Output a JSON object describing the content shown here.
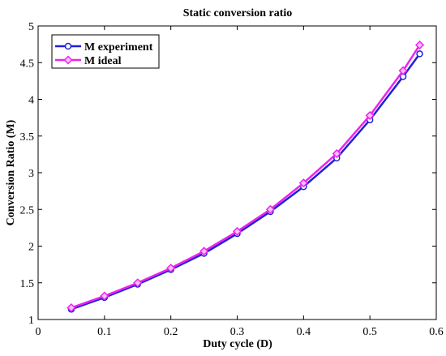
{
  "chart_data": {
    "type": "line",
    "title": "Static conversion ratio",
    "xlabel": "Duty cycle (D)",
    "ylabel": "Conversion Ratio (M)",
    "xlim": [
      0,
      0.6
    ],
    "ylim": [
      1,
      5
    ],
    "xticks": [
      0,
      0.1,
      0.2,
      0.3,
      0.4,
      0.5,
      0.6
    ],
    "xtick_labels": [
      "0",
      "0.1",
      "0.2",
      "0.3",
      "0.4",
      "0.5",
      "0.6"
    ],
    "yticks": [
      1,
      1.5,
      2,
      2.5,
      3,
      3.5,
      4,
      4.5,
      5
    ],
    "ytick_labels": [
      "1",
      "1.5",
      "2",
      "2.5",
      "3",
      "3.5",
      "4",
      "4.5",
      "5"
    ],
    "grid": false,
    "legend_position": "top-left",
    "x": [
      0.05,
      0.1,
      0.15,
      0.2,
      0.25,
      0.3,
      0.35,
      0.4,
      0.45,
      0.5,
      0.55,
      0.575
    ],
    "series": [
      {
        "name": "M experiment",
        "color": "#2020d8",
        "marker": "circle",
        "values": [
          1.14,
          1.3,
          1.48,
          1.68,
          1.9,
          2.17,
          2.47,
          2.81,
          3.2,
          3.72,
          4.31,
          4.62
        ]
      },
      {
        "name": "M ideal",
        "color": "#ee22ee",
        "marker": "diamond",
        "values": [
          1.16,
          1.32,
          1.5,
          1.7,
          1.93,
          2.2,
          2.5,
          2.86,
          3.26,
          3.78,
          4.39,
          4.74
        ]
      }
    ]
  }
}
